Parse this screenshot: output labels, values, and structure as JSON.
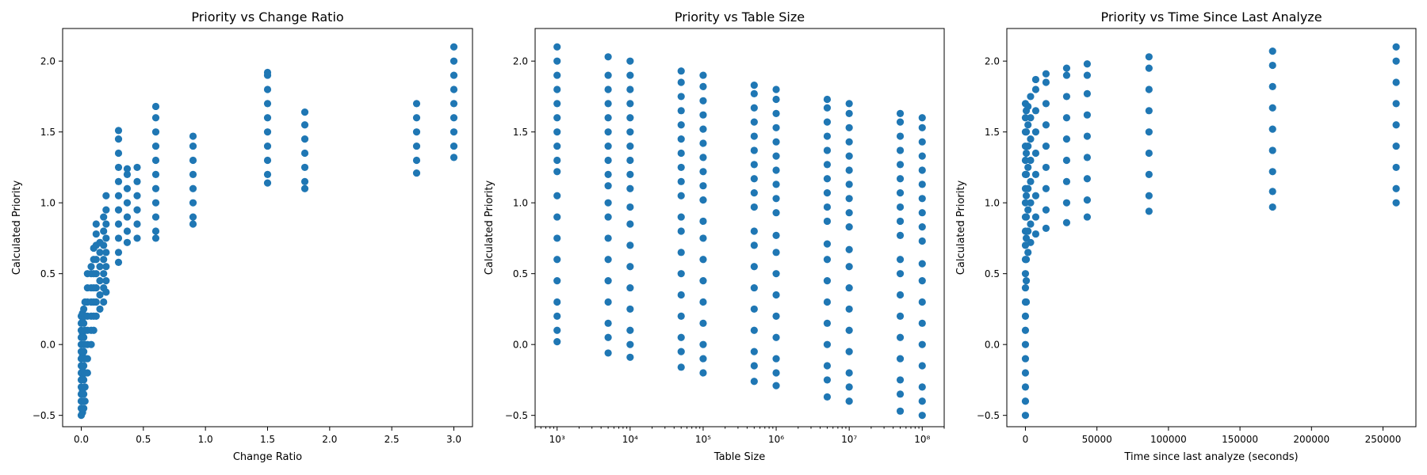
{
  "figure": {
    "background": "#ffffff",
    "marker_color": "#1f77b4"
  },
  "chart_data": [
    {
      "type": "scatter",
      "title": "Priority vs Change Ratio",
      "xlabel": "Change Ratio",
      "ylabel": "Calculated Priority",
      "xscale": "linear",
      "xlim": [
        -0.15,
        3.15
      ],
      "ylim": [
        -0.58,
        2.23
      ],
      "xticks": [
        0.0,
        0.5,
        1.0,
        1.5,
        2.0,
        2.5,
        3.0
      ],
      "xtick_labels": [
        "0.0",
        "0.5",
        "1.0",
        "1.5",
        "2.0",
        "2.5",
        "3.0"
      ],
      "yticks": [
        -0.5,
        0.0,
        0.5,
        1.0,
        1.5,
        2.0
      ],
      "ytick_labels": [
        "−0.5",
        "0.0",
        "0.5",
        "1.0",
        "1.5",
        "2.0"
      ],
      "grid": false,
      "series": [
        {
          "color": "#1f77b4",
          "columns": [
            {
              "x": 0.0,
              "y": [
                -0.5,
                -0.45,
                -0.4,
                -0.35,
                -0.3,
                -0.25,
                -0.2,
                -0.15,
                -0.1,
                -0.05,
                0.0,
                0.05,
                0.1,
                0.15,
                0.2
              ]
            },
            {
              "x": 0.01,
              "y": [
                -0.48,
                -0.4,
                -0.32,
                -0.24,
                -0.16,
                -0.08,
                0.0,
                0.08,
                0.16,
                0.22
              ]
            },
            {
              "x": 0.02,
              "y": [
                -0.45,
                -0.35,
                -0.25,
                -0.15,
                -0.05,
                0.05,
                0.15,
                0.25
              ]
            },
            {
              "x": 0.03,
              "y": [
                -0.4,
                -0.3,
                -0.2,
                -0.1,
                0.0,
                0.1,
                0.2,
                0.3
              ]
            },
            {
              "x": 0.05,
              "y": [
                -0.2,
                -0.1,
                0.0,
                0.1,
                0.2,
                0.3,
                0.4,
                0.5
              ]
            },
            {
              "x": 0.08,
              "y": [
                0.0,
                0.1,
                0.2,
                0.3,
                0.4,
                0.5,
                0.55
              ]
            },
            {
              "x": 0.1,
              "y": [
                0.1,
                0.2,
                0.3,
                0.4,
                0.5,
                0.6,
                0.68
              ]
            },
            {
              "x": 0.12,
              "y": [
                0.2,
                0.3,
                0.4,
                0.5,
                0.6,
                0.7,
                0.78,
                0.85
              ]
            },
            {
              "x": 0.15,
              "y": [
                0.25,
                0.35,
                0.45,
                0.55,
                0.65,
                0.72
              ]
            },
            {
              "x": 0.18,
              "y": [
                0.3,
                0.4,
                0.5,
                0.6,
                0.7,
                0.8,
                0.9
              ]
            },
            {
              "x": 0.2,
              "y": [
                0.37,
                0.45,
                0.55,
                0.65,
                0.75,
                0.85,
                0.95,
                1.05
              ]
            },
            {
              "x": 0.3,
              "y": [
                0.58,
                0.65,
                0.75,
                0.85,
                0.95,
                1.05,
                1.15,
                1.25,
                1.35,
                1.45,
                1.51
              ]
            },
            {
              "x": 0.37,
              "y": [
                0.72,
                0.8,
                0.9,
                1.0,
                1.1,
                1.2,
                1.24
              ]
            },
            {
              "x": 0.45,
              "y": [
                0.75,
                0.85,
                0.95,
                1.05,
                1.15,
                1.25
              ]
            },
            {
              "x": 0.6,
              "y": [
                0.75,
                0.8,
                0.9,
                1.0,
                1.1,
                1.2,
                1.3,
                1.4,
                1.5,
                1.6,
                1.68
              ]
            },
            {
              "x": 0.9,
              "y": [
                0.85,
                0.9,
                1.0,
                1.1,
                1.2,
                1.3,
                1.4,
                1.47
              ]
            },
            {
              "x": 1.5,
              "y": [
                1.14,
                1.2,
                1.3,
                1.4,
                1.5,
                1.6,
                1.7,
                1.8,
                1.9,
                1.92
              ]
            },
            {
              "x": 1.8,
              "y": [
                1.1,
                1.15,
                1.25,
                1.35,
                1.45,
                1.55,
                1.64
              ]
            },
            {
              "x": 2.7,
              "y": [
                1.21,
                1.3,
                1.4,
                1.5,
                1.6,
                1.7
              ]
            },
            {
              "x": 3.0,
              "y": [
                1.32,
                1.4,
                1.5,
                1.6,
                1.7,
                1.8,
                1.9,
                2.0,
                2.1
              ]
            }
          ]
        }
      ]
    },
    {
      "type": "scatter",
      "title": "Priority vs Table Size",
      "xlabel": "Table Size",
      "ylabel": "Calculated Priority",
      "xscale": "log",
      "xlim": [
        500,
        200000000
      ],
      "ylim": [
        -0.58,
        2.23
      ],
      "xticks": [
        1000,
        10000,
        100000,
        1000000,
        10000000,
        100000000
      ],
      "xtick_labels": [
        "10³",
        "10⁴",
        "10⁵",
        "10⁶",
        "10⁷",
        "10⁸"
      ],
      "yticks": [
        -0.5,
        0.0,
        0.5,
        1.0,
        1.5,
        2.0
      ],
      "ytick_labels": [
        "−0.5",
        "0.0",
        "0.5",
        "1.0",
        "1.5",
        "2.0"
      ],
      "grid": false,
      "series": [
        {
          "color": "#1f77b4",
          "columns": [
            {
              "x": 1000,
              "y": [
                0.02,
                0.1,
                0.2,
                0.3,
                0.45,
                0.6,
                0.75,
                0.9,
                1.05,
                1.22,
                1.3,
                1.4,
                1.5,
                1.6,
                1.7,
                1.8,
                1.9,
                2.0,
                2.1
              ]
            },
            {
              "x": 5000,
              "y": [
                -0.06,
                0.05,
                0.15,
                0.3,
                0.45,
                0.6,
                0.75,
                0.9,
                1.0,
                1.12,
                1.2,
                1.3,
                1.4,
                1.5,
                1.6,
                1.7,
                1.8,
                1.9,
                2.03
              ]
            },
            {
              "x": 10000,
              "y": [
                -0.09,
                0.0,
                0.1,
                0.25,
                0.4,
                0.55,
                0.7,
                0.85,
                0.97,
                1.1,
                1.2,
                1.3,
                1.4,
                1.5,
                1.6,
                1.7,
                1.8,
                1.9,
                2.0
              ]
            },
            {
              "x": 50000,
              "y": [
                -0.16,
                -0.05,
                0.05,
                0.2,
                0.35,
                0.5,
                0.65,
                0.8,
                0.9,
                1.05,
                1.15,
                1.25,
                1.35,
                1.45,
                1.55,
                1.65,
                1.75,
                1.85,
                1.93
              ]
            },
            {
              "x": 100000,
              "y": [
                -0.2,
                -0.1,
                0.0,
                0.15,
                0.3,
                0.45,
                0.6,
                0.75,
                0.87,
                1.02,
                1.12,
                1.22,
                1.32,
                1.42,
                1.52,
                1.62,
                1.72,
                1.82,
                1.9
              ]
            },
            {
              "x": 500000,
              "y": [
                -0.26,
                -0.15,
                -0.05,
                0.1,
                0.25,
                0.4,
                0.55,
                0.7,
                0.8,
                0.97,
                1.07,
                1.17,
                1.27,
                1.37,
                1.47,
                1.57,
                1.67,
                1.77,
                1.83
              ]
            },
            {
              "x": 1000000,
              "y": [
                -0.29,
                -0.2,
                -0.1,
                0.05,
                0.2,
                0.35,
                0.5,
                0.65,
                0.77,
                0.93,
                1.03,
                1.13,
                1.23,
                1.33,
                1.43,
                1.53,
                1.63,
                1.73,
                1.8
              ]
            },
            {
              "x": 5000000,
              "y": [
                -0.37,
                -0.25,
                -0.15,
                0.0,
                0.15,
                0.3,
                0.45,
                0.6,
                0.71,
                0.87,
                0.97,
                1.07,
                1.17,
                1.27,
                1.37,
                1.47,
                1.57,
                1.67,
                1.73
              ]
            },
            {
              "x": 10000000,
              "y": [
                -0.4,
                -0.3,
                -0.2,
                -0.05,
                0.1,
                0.25,
                0.4,
                0.55,
                0.67,
                0.83,
                0.93,
                1.03,
                1.13,
                1.23,
                1.33,
                1.43,
                1.53,
                1.63,
                1.7
              ]
            },
            {
              "x": 50000000,
              "y": [
                -0.47,
                -0.35,
                -0.25,
                -0.1,
                0.05,
                0.2,
                0.35,
                0.5,
                0.6,
                0.77,
                0.87,
                0.97,
                1.07,
                1.17,
                1.27,
                1.37,
                1.47,
                1.57,
                1.63
              ]
            },
            {
              "x": 100000000,
              "y": [
                -0.5,
                -0.4,
                -0.3,
                -0.15,
                0.0,
                0.15,
                0.3,
                0.45,
                0.57,
                0.73,
                0.83,
                0.93,
                1.03,
                1.13,
                1.23,
                1.33,
                1.43,
                1.53,
                1.6
              ]
            }
          ]
        }
      ]
    },
    {
      "type": "scatter",
      "title": "Priority vs Time Since Last Analyze",
      "xlabel": "Time since last analyze (seconds)",
      "ylabel": "Calculated Priority",
      "xscale": "linear",
      "xlim": [
        -13000,
        273000
      ],
      "ylim": [
        -0.58,
        2.23
      ],
      "xticks": [
        0,
        50000,
        100000,
        150000,
        200000,
        250000
      ],
      "xtick_labels": [
        "0",
        "50000",
        "100000",
        "150000",
        "200000",
        "250000"
      ],
      "yticks": [
        -0.5,
        0.0,
        0.5,
        1.0,
        1.5,
        2.0
      ],
      "ytick_labels": [
        "−0.5",
        "0.0",
        "0.5",
        "1.0",
        "1.5",
        "2.0"
      ],
      "grid": false,
      "series": [
        {
          "color": "#1f77b4",
          "columns": [
            {
              "x": 0,
              "y": [
                -0.5,
                -0.4,
                -0.3,
                -0.2,
                -0.1,
                0.0,
                0.1,
                0.2,
                0.3,
                0.4,
                0.5,
                0.6,
                0.7,
                0.8,
                0.9,
                1.0,
                1.1,
                1.2,
                1.3,
                1.4,
                1.5,
                1.6,
                1.7
              ]
            },
            {
              "x": 600,
              "y": [
                0.3,
                0.45,
                0.6,
                0.75,
                0.9,
                1.05,
                1.2,
                1.35,
                1.5,
                1.65
              ]
            },
            {
              "x": 1800,
              "y": [
                0.65,
                0.8,
                0.95,
                1.1,
                1.25,
                1.4,
                1.55,
                1.68
              ]
            },
            {
              "x": 3600,
              "y": [
                0.72,
                0.85,
                1.0,
                1.15,
                1.3,
                1.45,
                1.6,
                1.75
              ]
            },
            {
              "x": 7200,
              "y": [
                0.78,
                0.9,
                1.05,
                1.2,
                1.35,
                1.5,
                1.65,
                1.8,
                1.87
              ]
            },
            {
              "x": 14400,
              "y": [
                0.82,
                0.95,
                1.1,
                1.25,
                1.4,
                1.55,
                1.7,
                1.85,
                1.91
              ]
            },
            {
              "x": 28800,
              "y": [
                0.86,
                1.0,
                1.15,
                1.3,
                1.45,
                1.6,
                1.75,
                1.9,
                1.95
              ]
            },
            {
              "x": 43200,
              "y": [
                0.9,
                1.02,
                1.17,
                1.32,
                1.47,
                1.62,
                1.77,
                1.9,
                1.98
              ]
            },
            {
              "x": 86400,
              "y": [
                0.94,
                1.05,
                1.2,
                1.35,
                1.5,
                1.65,
                1.8,
                1.95,
                2.03
              ]
            },
            {
              "x": 172800,
              "y": [
                0.97,
                1.08,
                1.22,
                1.37,
                1.52,
                1.67,
                1.82,
                1.97,
                2.07
              ]
            },
            {
              "x": 259200,
              "y": [
                1.0,
                1.1,
                1.25,
                1.4,
                1.55,
                1.7,
                1.85,
                2.0,
                2.1
              ]
            }
          ]
        }
      ]
    }
  ]
}
